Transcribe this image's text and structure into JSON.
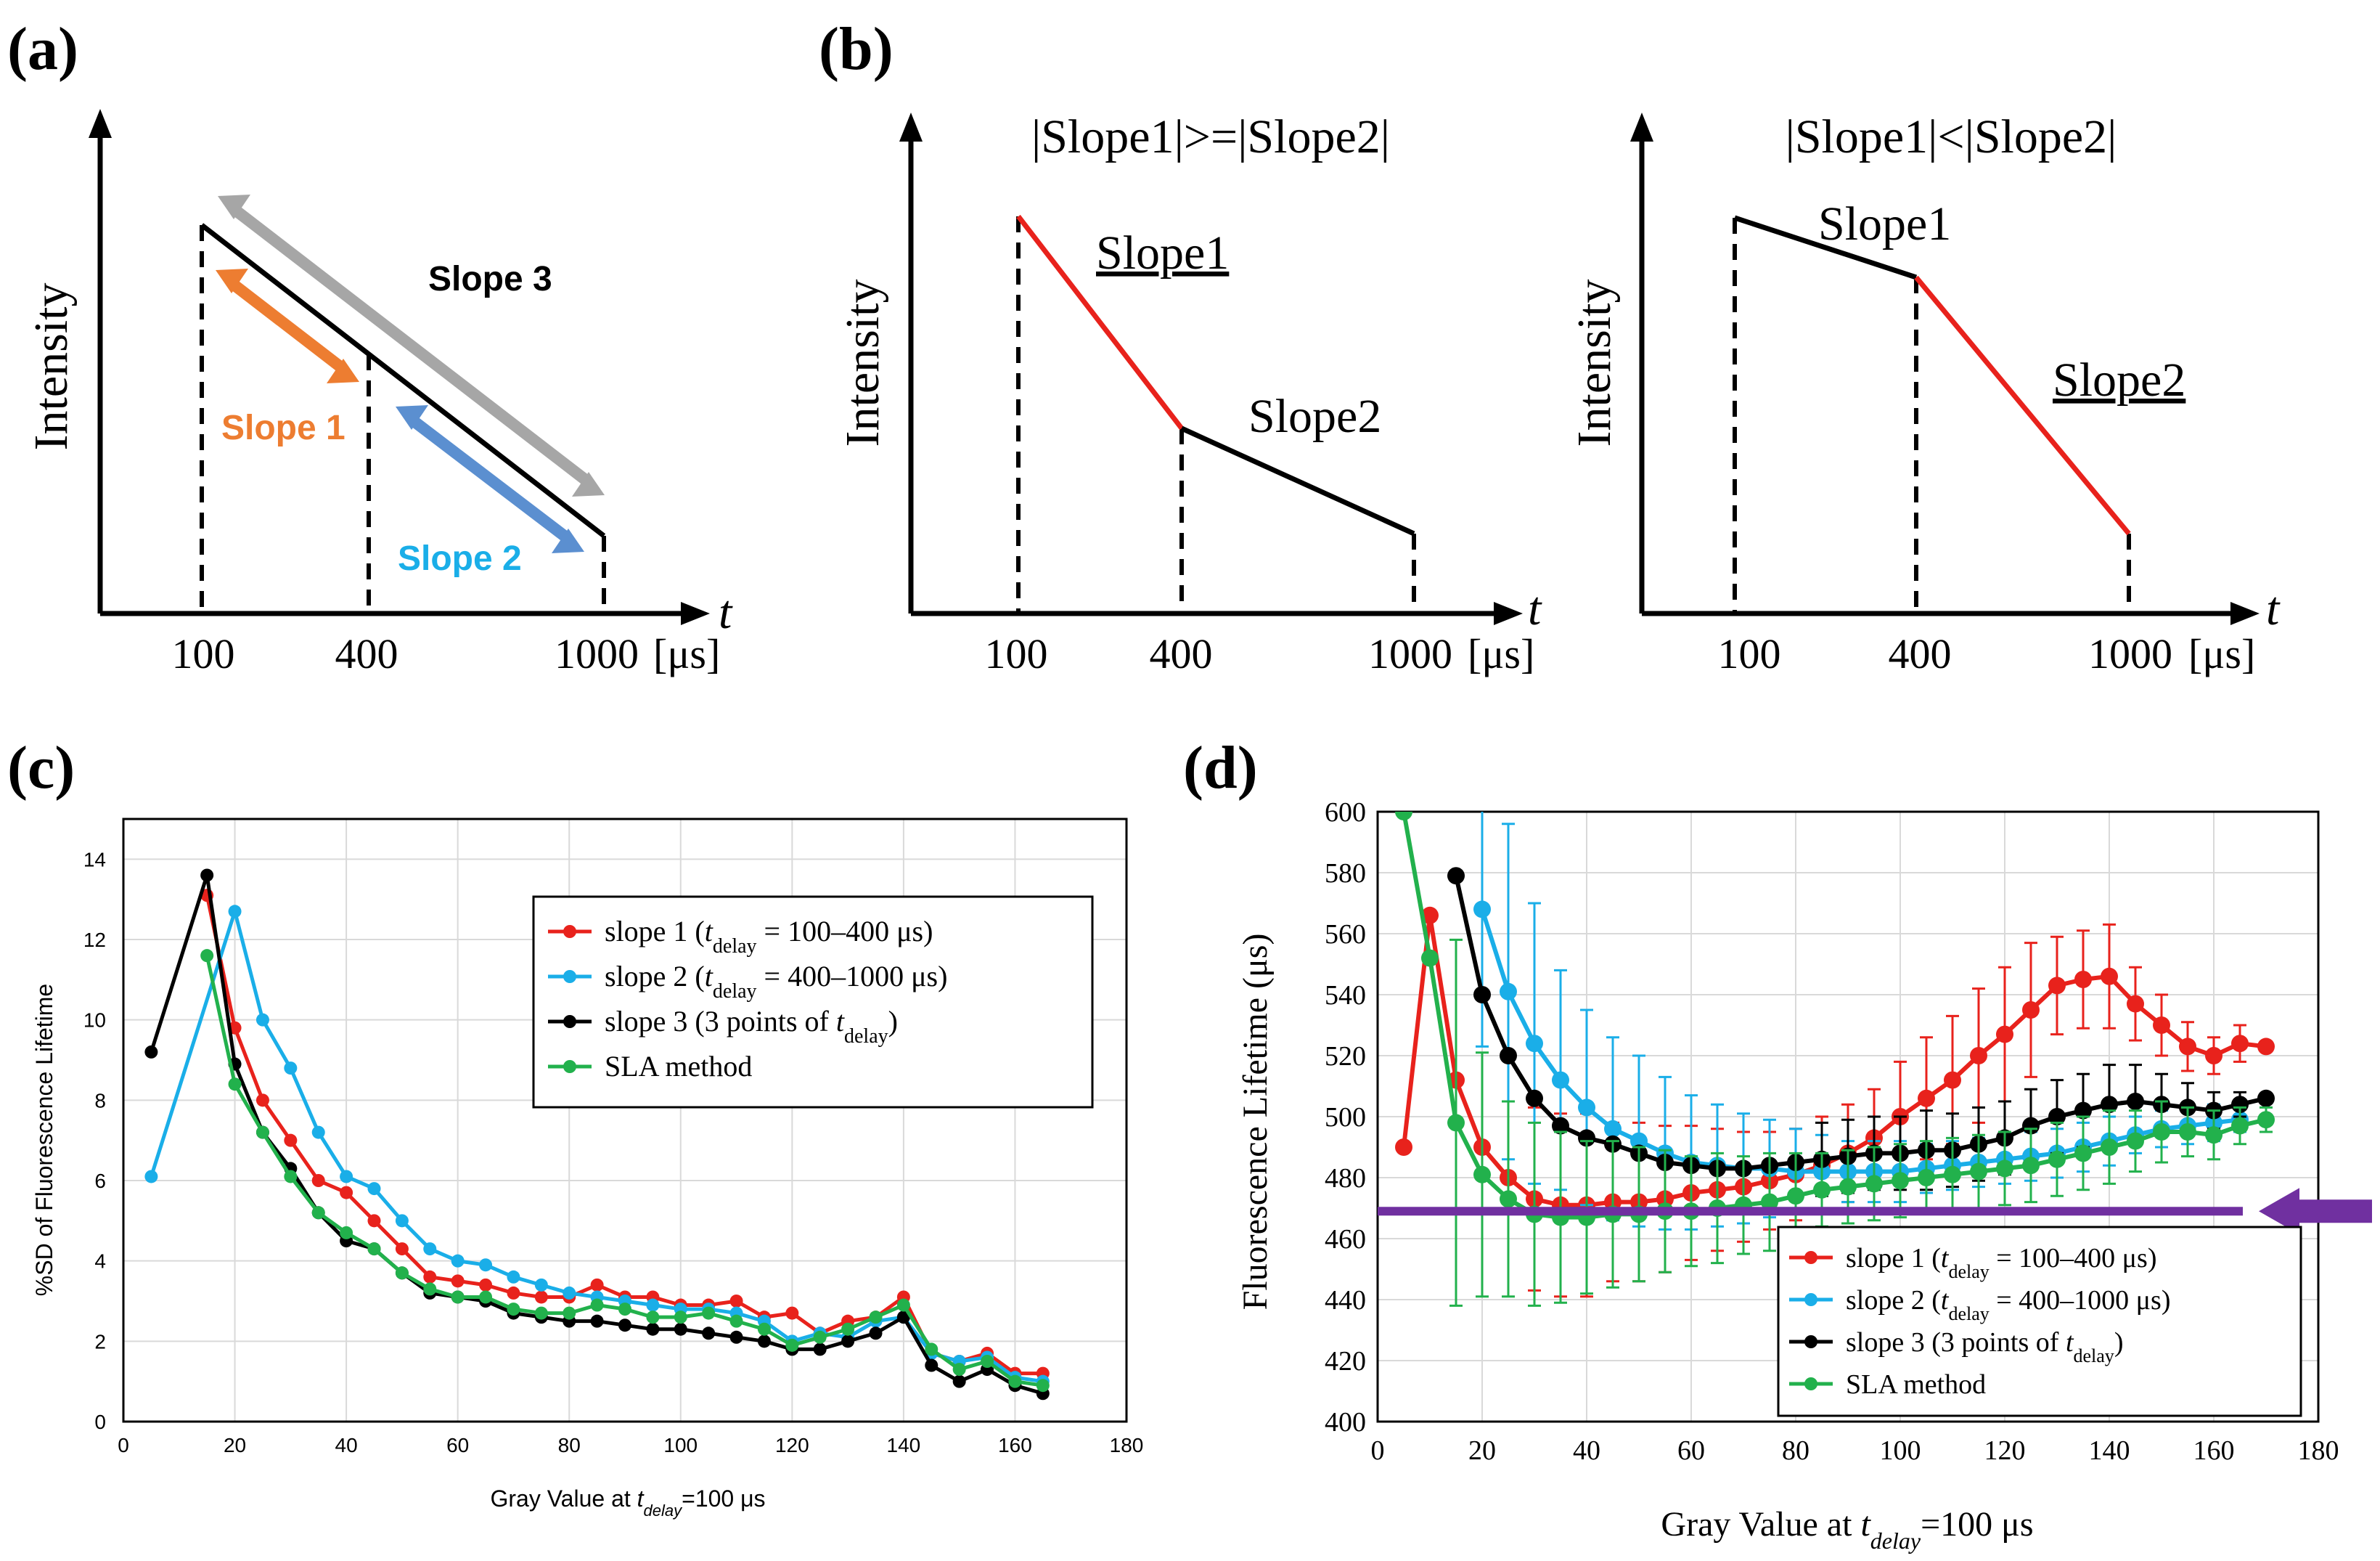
{
  "colors": {
    "red": "#e8221c",
    "blue": "#1aaee8",
    "black": "#000000",
    "green": "#22b14c",
    "orange": "#ed7d31",
    "steel_blue": "#5b8fd0",
    "gray": "#a6a6a6",
    "cyan_text": "#1aaee8",
    "purple": "#7030a0"
  },
  "panel_a": {
    "label": "(a)",
    "ylabel": "Intensity",
    "xlabel": "t",
    "ticks": [
      "100",
      "400",
      "1000"
    ],
    "unit": "[μs]",
    "slope1": "Slope 1",
    "slope2": "Slope 2",
    "slope3": "Slope 3"
  },
  "panel_b": {
    "label": "(b)",
    "ylabel": "Intensity",
    "xlabel": "t",
    "ticks": [
      "100",
      "400",
      "1000"
    ],
    "unit": "[μs]",
    "left_title": "|Slope1|>=|Slope2|",
    "right_title": "|Slope1|<|Slope2|",
    "slope1": "Slope1",
    "slope2": "Slope2"
  },
  "panel_c": {
    "label": "(c)",
    "ylabel": "%SD of Fluorescence Lifetime",
    "xlabel_pre": "Gray Value at ",
    "xlabel_var": "t",
    "xlabel_sub": "delay",
    "xlabel_post": "=100 μs",
    "legend": [
      {
        "pre": "slope 1 (",
        "var": "t",
        "sub": "delay",
        "post": " = 100–400  μs)"
      },
      {
        "pre": "slope 2 (",
        "var": "t",
        "sub": "delay",
        "post": " = 400–1000  μs)"
      },
      {
        "pre": "slope 3 (3  points of ",
        "var": "t",
        "sub": "delay",
        "post": ")"
      },
      {
        "pre": "SLA method",
        "var": "",
        "sub": "",
        "post": ""
      }
    ]
  },
  "panel_d": {
    "label": "(d)",
    "ylabel": "Fluorescence Lifetime (μs)",
    "xlabel_pre": "Gray Value at ",
    "xlabel_var": "t",
    "xlabel_sub": "delay",
    "xlabel_post": "=100 μs",
    "legend": [
      {
        "pre": "slope 1 (",
        "var": "t",
        "sub": "delay",
        "post": " = 100–400 μs)"
      },
      {
        "pre": "slope 2 (",
        "var": "t",
        "sub": "delay",
        "post": " = 400–1000 μs)"
      },
      {
        "pre": "slope 3 (3 points of ",
        "var": "t",
        "sub": "delay",
        "post": ")"
      },
      {
        "pre": "SLA method",
        "var": "",
        "sub": "",
        "post": ""
      }
    ]
  },
  "chart_data": [
    {
      "id": "c",
      "type": "line",
      "title": "",
      "xlabel": "Gray Value at tdelay=100 μs",
      "ylabel": "%SD of Fluorescence Lifetime",
      "xlim": [
        0,
        180
      ],
      "ylim": [
        0,
        15
      ],
      "xticks": [
        0,
        20,
        40,
        60,
        80,
        100,
        120,
        140,
        160,
        180
      ],
      "yticks": [
        0,
        2,
        4,
        6,
        8,
        10,
        12,
        14
      ],
      "grid": true,
      "legend_position": "top-right",
      "series": [
        {
          "name": "slope 1 (tdelay = 100–400 μs)",
          "color_key": "red",
          "x": [
            15,
            20,
            25,
            30,
            35,
            40,
            45,
            50,
            55,
            60,
            65,
            70,
            75,
            80,
            85,
            90,
            95,
            100,
            105,
            110,
            115,
            120,
            125,
            130,
            135,
            140,
            145,
            150,
            155,
            160,
            165
          ],
          "y": [
            13.1,
            9.8,
            8.0,
            7.0,
            6.0,
            5.7,
            5.0,
            4.3,
            3.6,
            3.5,
            3.4,
            3.2,
            3.1,
            3.1,
            3.4,
            3.1,
            3.1,
            2.9,
            2.9,
            3.0,
            2.6,
            2.7,
            2.2,
            2.5,
            2.6,
            3.1,
            1.7,
            1.5,
            1.7,
            1.2,
            1.2
          ]
        },
        {
          "name": "slope 2 (tdelay = 400–1000 μs)",
          "color_key": "blue",
          "x": [
            5,
            20,
            25,
            30,
            35,
            40,
            45,
            50,
            55,
            60,
            65,
            70,
            75,
            80,
            85,
            90,
            95,
            100,
            105,
            110,
            115,
            120,
            125,
            130,
            135,
            140,
            145,
            150,
            155,
            160,
            165
          ],
          "y": [
            6.1,
            12.7,
            10.0,
            8.8,
            7.2,
            6.1,
            5.8,
            5.0,
            4.3,
            4.0,
            3.9,
            3.6,
            3.4,
            3.2,
            3.1,
            3.0,
            2.9,
            2.8,
            2.8,
            2.7,
            2.5,
            2.0,
            2.2,
            2.1,
            2.5,
            2.6,
            1.7,
            1.5,
            1.6,
            1.1,
            1.0
          ]
        },
        {
          "name": "slope 3 (3 points of tdelay)",
          "color_key": "black",
          "x": [
            5,
            15,
            20,
            25,
            30,
            35,
            40,
            45,
            50,
            55,
            60,
            65,
            70,
            75,
            80,
            85,
            90,
            95,
            100,
            105,
            110,
            115,
            120,
            125,
            130,
            135,
            140,
            145,
            150,
            155,
            160,
            165
          ],
          "y": [
            9.2,
            13.6,
            8.9,
            7.2,
            6.3,
            5.2,
            4.5,
            4.3,
            3.7,
            3.2,
            3.1,
            3.0,
            2.7,
            2.6,
            2.5,
            2.5,
            2.4,
            2.3,
            2.3,
            2.2,
            2.1,
            2.0,
            1.8,
            1.8,
            2.0,
            2.2,
            2.6,
            1.4,
            1.0,
            1.3,
            0.9,
            0.7
          ]
        },
        {
          "name": "SLA method",
          "color_key": "green",
          "x": [
            15,
            20,
            25,
            30,
            35,
            40,
            45,
            50,
            55,
            60,
            65,
            70,
            75,
            80,
            85,
            90,
            95,
            100,
            105,
            110,
            115,
            120,
            125,
            130,
            135,
            140,
            145,
            150,
            155,
            160,
            165
          ],
          "y": [
            11.6,
            8.4,
            7.2,
            6.1,
            5.2,
            4.7,
            4.3,
            3.7,
            3.3,
            3.1,
            3.1,
            2.8,
            2.7,
            2.7,
            2.9,
            2.8,
            2.6,
            2.6,
            2.7,
            2.5,
            2.3,
            1.9,
            2.1,
            2.3,
            2.6,
            2.9,
            1.8,
            1.3,
            1.5,
            1.0,
            0.9
          ]
        }
      ]
    },
    {
      "id": "d",
      "type": "line",
      "title": "",
      "xlabel": "Gray Value at tdelay=100 μs",
      "ylabel": "Fluorescence Lifetime (μs)",
      "xlim": [
        0,
        180
      ],
      "ylim": [
        400,
        600
      ],
      "xticks": [
        0,
        20,
        40,
        60,
        80,
        100,
        120,
        140,
        160,
        180
      ],
      "yticks": [
        400,
        420,
        440,
        460,
        480,
        500,
        520,
        540,
        560,
        580,
        600
      ],
      "grid": true,
      "legend_position": "bottom-right",
      "reference_line": {
        "y": 469,
        "color_key": "purple",
        "arrow": "right"
      },
      "series": [
        {
          "name": "slope 1 (tdelay = 100–400 μs)",
          "color_key": "red",
          "x": [
            5,
            10,
            15,
            20,
            25,
            30,
            35,
            40,
            45,
            50,
            55,
            60,
            65,
            70,
            75,
            80,
            85,
            90,
            95,
            100,
            105,
            110,
            115,
            120,
            125,
            130,
            135,
            140,
            145,
            150,
            155,
            160,
            165,
            170
          ],
          "y": [
            490,
            566,
            512,
            490,
            480,
            473,
            471,
            471,
            472,
            472,
            473,
            475,
            476,
            477,
            479,
            481,
            484,
            488,
            493,
            500,
            506,
            512,
            520,
            527,
            535,
            543,
            545,
            546,
            537,
            530,
            523,
            520,
            524,
            523
          ],
          "err": [
            0,
            0,
            0,
            0,
            0,
            30,
            30,
            30,
            26,
            26,
            24,
            22,
            20,
            18,
            16,
            15,
            16,
            16,
            16,
            18,
            20,
            21,
            22,
            22,
            22,
            16,
            16,
            17,
            12,
            10,
            8,
            6,
            6,
            0
          ]
        },
        {
          "name": "slope 2 (tdelay = 400–1000 μs)",
          "color_key": "blue",
          "x": [
            20,
            25,
            30,
            35,
            40,
            45,
            50,
            55,
            60,
            65,
            70,
            75,
            80,
            85,
            90,
            95,
            100,
            105,
            110,
            115,
            120,
            125,
            130,
            135,
            140,
            145,
            150,
            155,
            160,
            165
          ],
          "y": [
            568,
            541,
            524,
            512,
            503,
            496,
            492,
            488,
            485,
            484,
            483,
            483,
            482,
            482,
            482,
            482,
            482,
            483,
            484,
            485,
            486,
            487,
            488,
            490,
            492,
            494,
            496,
            497,
            498,
            499
          ],
          "err": [
            45,
            55,
            46,
            36,
            32,
            30,
            28,
            25,
            22,
            20,
            18,
            16,
            14,
            12,
            10,
            10,
            10,
            8,
            8,
            8,
            8,
            8,
            8,
            8,
            8,
            6,
            6,
            6,
            6,
            4
          ]
        },
        {
          "name": "slope 3 (3 points of tdelay)",
          "color_key": "black",
          "x": [
            15,
            20,
            25,
            30,
            35,
            40,
            45,
            50,
            55,
            60,
            65,
            70,
            75,
            80,
            85,
            90,
            95,
            100,
            105,
            110,
            115,
            120,
            125,
            130,
            135,
            140,
            145,
            150,
            155,
            160,
            165,
            170
          ],
          "y": [
            579,
            540,
            520,
            506,
            497,
            493,
            491,
            488,
            485,
            484,
            483,
            483,
            484,
            485,
            486,
            487,
            488,
            488,
            489,
            489,
            491,
            493,
            497,
            500,
            502,
            504,
            505,
            504,
            503,
            502,
            504,
            506
          ],
          "err": [
            0,
            0,
            0,
            0,
            0,
            0,
            0,
            0,
            0,
            0,
            0,
            0,
            0,
            0,
            12,
            12,
            12,
            12,
            13,
            12,
            12,
            12,
            12,
            12,
            12,
            13,
            12,
            10,
            8,
            6,
            4,
            0
          ]
        },
        {
          "name": "SLA method",
          "color_key": "green",
          "x": [
            5,
            10,
            15,
            20,
            25,
            30,
            35,
            40,
            45,
            50,
            55,
            60,
            65,
            70,
            75,
            80,
            85,
            90,
            95,
            100,
            105,
            110,
            115,
            120,
            125,
            130,
            135,
            140,
            145,
            150,
            155,
            160,
            165,
            170
          ],
          "y": [
            600,
            552,
            498,
            481,
            473,
            468,
            467,
            467,
            468,
            468,
            469,
            469,
            470,
            471,
            472,
            474,
            476,
            477,
            478,
            479,
            480,
            481,
            482,
            483,
            484,
            486,
            488,
            490,
            492,
            495,
            495,
            494,
            497,
            499
          ],
          "err": [
            0,
            0,
            60,
            40,
            32,
            30,
            28,
            25,
            24,
            22,
            20,
            18,
            18,
            16,
            16,
            14,
            12,
            12,
            12,
            12,
            12,
            12,
            12,
            12,
            12,
            12,
            12,
            12,
            10,
            10,
            8,
            8,
            6,
            4
          ]
        }
      ]
    }
  ]
}
